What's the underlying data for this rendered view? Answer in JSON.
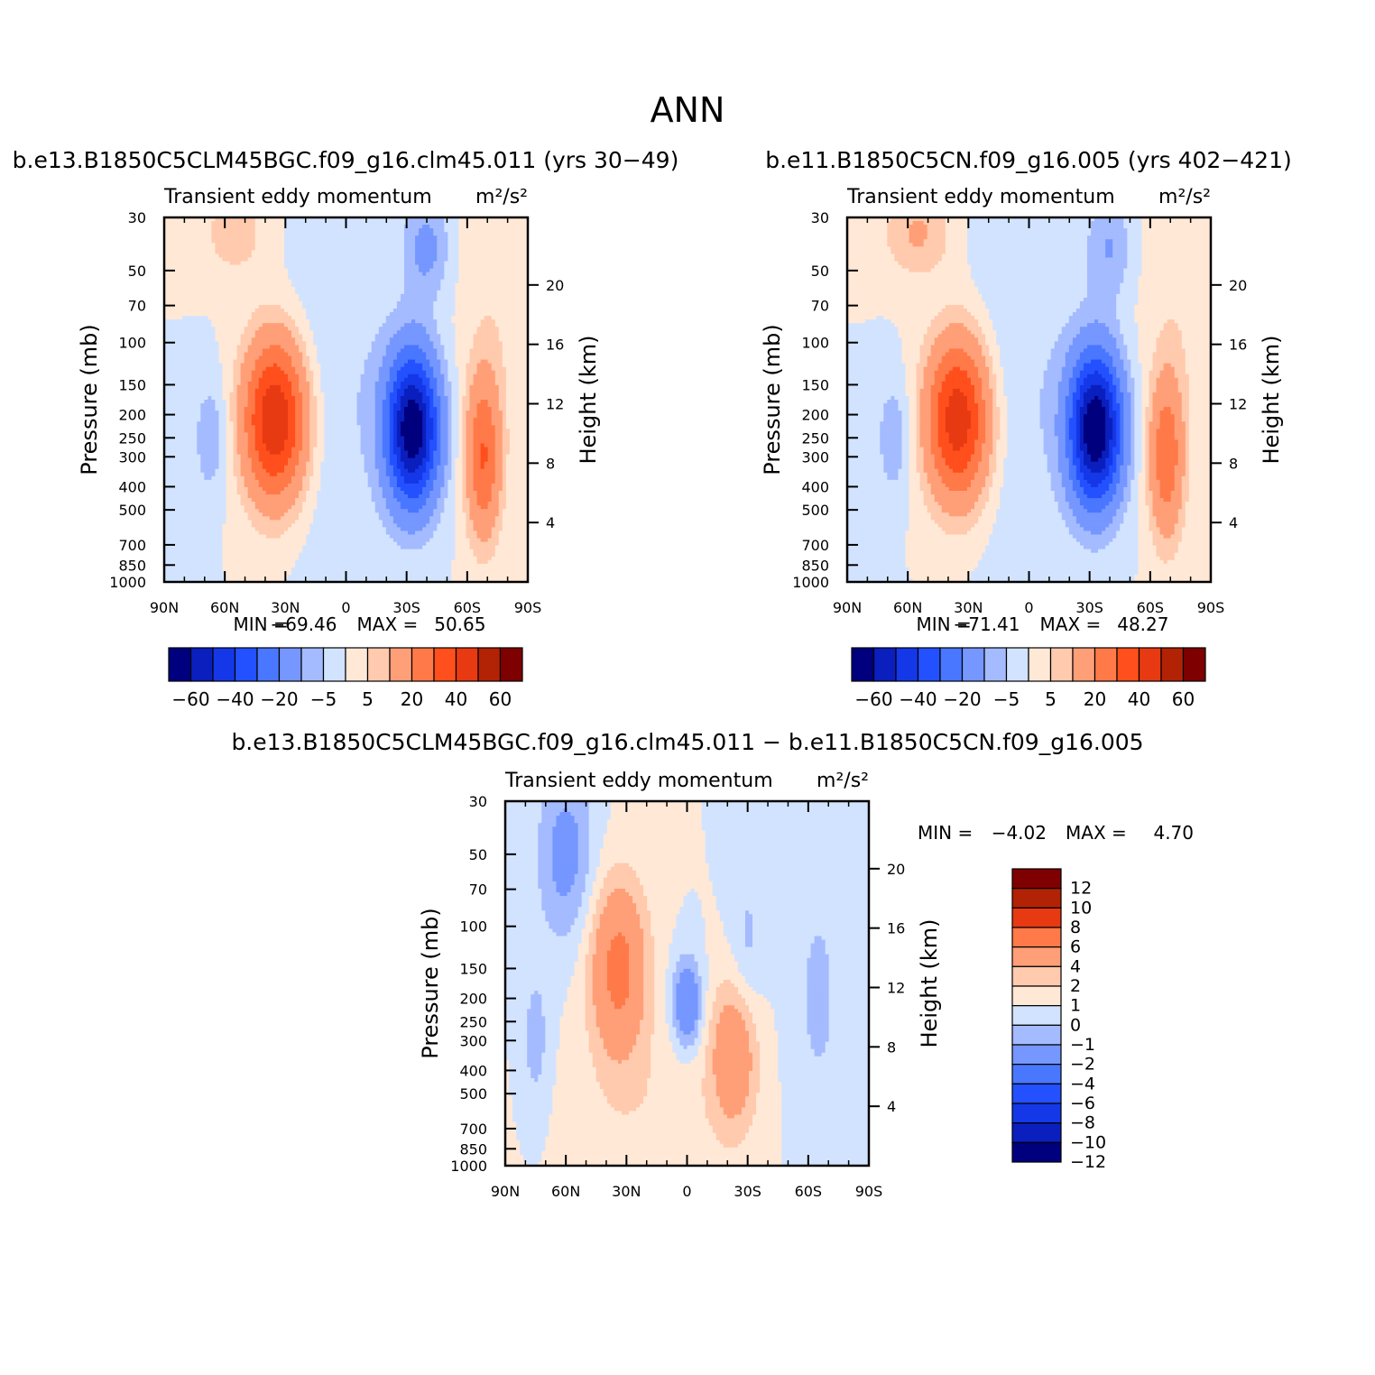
{
  "page": {
    "title": "ANN"
  },
  "colors": {
    "palette_16": [
      "#00007f",
      "#0a1fbd",
      "#1438e8",
      "#2451ff",
      "#4a77ff",
      "#7597ff",
      "#a4bbff",
      "#d2e3ff",
      "#ffe8d6",
      "#ffcaad",
      "#ff9f78",
      "#ff7a48",
      "#ff4f1c",
      "#e83a12",
      "#b22205",
      "#7f0000"
    ],
    "diff_palette": [
      "#00007f",
      "#0a1fbd",
      "#1438e8",
      "#2451ff",
      "#4a77ff",
      "#7597ff",
      "#a4bbff",
      "#d2e3ff",
      "#ffe8d6",
      "#ffcaad",
      "#ff9f78",
      "#ff7a48",
      "#e83a12",
      "#b22205",
      "#7f0000"
    ]
  },
  "chart_data": [
    {
      "id": "panel-case",
      "type": "contour",
      "panel_title": "b.e13.B1850C5CLM45BGC.f09_g16.clm45.011 (yrs 30-49)",
      "subtitle": "Transient eddy momentum",
      "units": "m²/s²",
      "ylabel": "Pressure (mb)",
      "y2label": "Height (km)",
      "xticks": [
        "90N",
        "60N",
        "30N",
        "0",
        "30S",
        "60S",
        "90S"
      ],
      "x_range": [
        90,
        -90
      ],
      "yticks": [
        30,
        50,
        70,
        100,
        150,
        200,
        250,
        300,
        400,
        500,
        700,
        850,
        1000
      ],
      "y_range": [
        30,
        1000
      ],
      "height_ticks": [
        20,
        16,
        12,
        8,
        4
      ],
      "min_label": "MIN =",
      "min": "-69.46",
      "max_label": "MAX =",
      "max": "50.65",
      "colorbar_labels": [
        "-60",
        "-40",
        "-20",
        "-5",
        "5",
        "20",
        "40",
        "60"
      ],
      "levels": [
        -60,
        -50,
        -40,
        -30,
        -20,
        -10,
        -5,
        0,
        5,
        10,
        20,
        30,
        40,
        50,
        60
      ],
      "features": [
        {
          "lat": 35,
          "p": 210,
          "amp": 50.65,
          "wlat": 11,
          "wlogp": 0.55
        },
        {
          "lat": -33,
          "p": 230,
          "amp": -69.46,
          "wlat": 9,
          "wlogp": 0.5
        },
        {
          "lat": -68,
          "p": 300,
          "amp": 30,
          "wlat": 6,
          "wlogp": 0.55
        },
        {
          "lat": 67,
          "p": 250,
          "amp": -9,
          "wlat": 6,
          "wlogp": 0.4
        },
        {
          "lat": -40,
          "p": 40,
          "amp": -12,
          "wlat": 8,
          "wlogp": 0.35
        },
        {
          "lat": 55,
          "p": 35,
          "amp": 8,
          "wlat": 12,
          "wlogp": 0.3
        },
        {
          "lat": -75,
          "p": 60,
          "amp": 4,
          "wlat": 14,
          "wlogp": 1.0
        },
        {
          "lat": 5,
          "p": 150,
          "amp": -5,
          "wlat": 22,
          "wlogp": 1.3
        }
      ]
    },
    {
      "id": "panel-control",
      "type": "contour",
      "panel_title": "b.e11.B1850C5CN.f09_g16.005 (yrs 402-421)",
      "subtitle": "Transient eddy momentum",
      "units": "m²/s²",
      "ylabel": "Pressure (mb)",
      "y2label": "Height (km)",
      "xticks": [
        "90N",
        "60N",
        "30N",
        "0",
        "30S",
        "60S",
        "90S"
      ],
      "x_range": [
        90,
        -90
      ],
      "yticks": [
        30,
        50,
        70,
        100,
        150,
        200,
        250,
        300,
        400,
        500,
        700,
        850,
        1000
      ],
      "y_range": [
        30,
        1000
      ],
      "height_ticks": [
        20,
        16,
        12,
        8,
        4
      ],
      "min_label": "MIN =",
      "min": "-71.41",
      "max_label": "MAX =",
      "max": "48.27",
      "colorbar_labels": [
        "-60",
        "-40",
        "-20",
        "-5",
        "5",
        "20",
        "40",
        "60"
      ],
      "levels": [
        -60,
        -50,
        -40,
        -30,
        -20,
        -10,
        -5,
        0,
        5,
        10,
        20,
        30,
        40,
        50,
        60
      ],
      "features": [
        {
          "lat": 35,
          "p": 210,
          "amp": 48.27,
          "wlat": 11,
          "wlogp": 0.55
        },
        {
          "lat": -33,
          "p": 230,
          "amp": -71.41,
          "wlat": 9,
          "wlogp": 0.5
        },
        {
          "lat": -68,
          "p": 300,
          "amp": 27,
          "wlat": 6,
          "wlogp": 0.55
        },
        {
          "lat": 67,
          "p": 250,
          "amp": -9,
          "wlat": 6,
          "wlogp": 0.4
        },
        {
          "lat": -40,
          "p": 40,
          "amp": -10,
          "wlat": 8,
          "wlogp": 0.35
        },
        {
          "lat": 55,
          "p": 35,
          "amp": 11,
          "wlat": 12,
          "wlogp": 0.3
        },
        {
          "lat": -75,
          "p": 60,
          "amp": 4,
          "wlat": 14,
          "wlogp": 1.0
        },
        {
          "lat": 5,
          "p": 150,
          "amp": -5,
          "wlat": 22,
          "wlogp": 1.3
        }
      ]
    },
    {
      "id": "panel-diff",
      "type": "contour",
      "panel_title": "b.e13.B1850C5CLM45BGC.f09_g16.clm45.011 - b.e11.B1850C5CN.f09_g16.005",
      "subtitle": "Transient eddy momentum",
      "units": "m²/s²",
      "ylabel": "Pressure (mb)",
      "y2label": "Height (km)",
      "xticks": [
        "90N",
        "60N",
        "30N",
        "0",
        "30S",
        "60S",
        "90S"
      ],
      "x_range": [
        90,
        -90
      ],
      "yticks": [
        30,
        50,
        70,
        100,
        150,
        200,
        250,
        300,
        400,
        500,
        700,
        850,
        1000
      ],
      "y_range": [
        30,
        1000
      ],
      "height_ticks": [
        20,
        16,
        12,
        8,
        4
      ],
      "min_label": "MIN =",
      "min": "-4.02",
      "max_label": "MAX =",
      "max": "4.70",
      "colorbar_labels": [
        "12",
        "10",
        "8",
        "6",
        "4",
        "2",
        "1",
        "0",
        "-1",
        "-2",
        "-4",
        "-6",
        "-8",
        "-10",
        "-12"
      ],
      "levels": [
        -12,
        -10,
        -8,
        -6,
        -4,
        -2,
        -1,
        0,
        1,
        2,
        4,
        6,
        8,
        10,
        12
      ],
      "features": [
        {
          "lat": 34,
          "p": 150,
          "amp": 4.7,
          "wlat": 10,
          "wlogp": 0.6
        },
        {
          "lat": -23,
          "p": 340,
          "amp": 3.5,
          "wlat": 8,
          "wlogp": 0.5
        },
        {
          "lat": 0,
          "p": 210,
          "amp": -4.02,
          "wlat": 5,
          "wlogp": 0.3
        },
        {
          "lat": 60,
          "p": 50,
          "amp": -2.6,
          "wlat": 10,
          "wlogp": 0.6
        },
        {
          "lat": 75,
          "p": 300,
          "amp": -1.5,
          "wlat": 5,
          "wlogp": 0.5
        },
        {
          "lat": -30,
          "p": 120,
          "amp": -1.3,
          "wlat": 6,
          "wlogp": 0.5
        },
        {
          "lat": -65,
          "p": 200,
          "amp": -1.2,
          "wlat": 10,
          "wlogp": 1.0
        },
        {
          "lat": 15,
          "p": 600,
          "amp": 0.8,
          "wlat": 30,
          "wlogp": 0.6
        }
      ]
    }
  ]
}
